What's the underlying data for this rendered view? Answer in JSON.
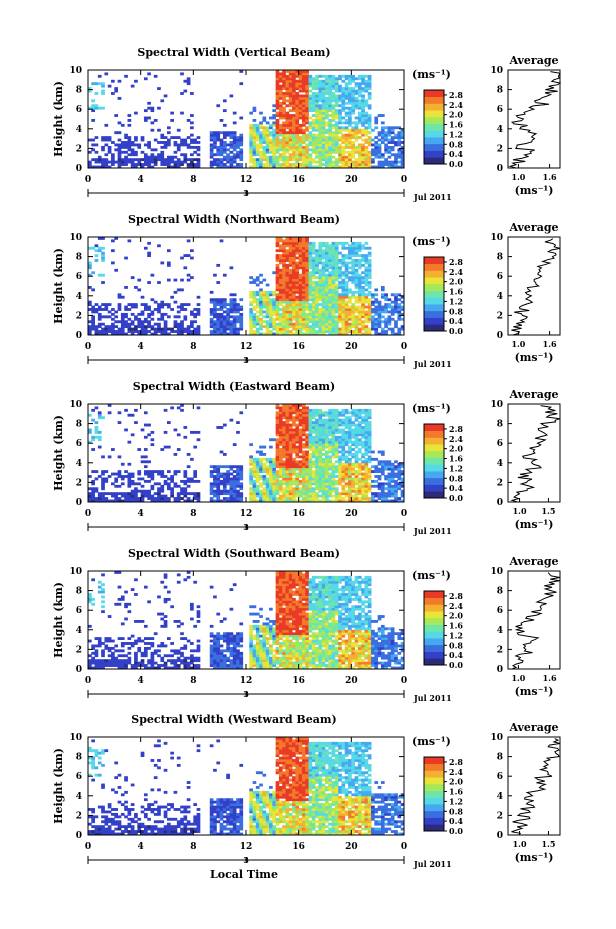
{
  "figure": {
    "x_axis_title": "Local Time",
    "date_label": "Jul 2011",
    "day_label": "3",
    "time_ticks": [
      "0",
      "4",
      "8",
      "12",
      "16",
      "20",
      "0"
    ],
    "height_ticks": [
      "0",
      "2",
      "4",
      "6",
      "8",
      "10"
    ],
    "y_axis_title": "Height (km)",
    "colorbar_unit": "(ms⁻¹)",
    "colorbar_ticks": [
      "0.0",
      "0.4",
      "0.8",
      "1.2",
      "1.6",
      "2.0",
      "2.4",
      "2.8"
    ],
    "average_title": "Average",
    "average_unit": "(ms⁻¹)",
    "colormap": [
      "#2b2b7a",
      "#3340c8",
      "#3a6fe0",
      "#46a8f0",
      "#56d8e6",
      "#6ee6a8",
      "#a6e85a",
      "#e8e43a",
      "#f4b030",
      "#f27a2a",
      "#e83a26"
    ]
  },
  "chart_data": [
    {
      "type": "heatmap",
      "title": "Spectral Width (Vertical Beam)",
      "xlabel": "Local Time",
      "ylabel": "Height (km)",
      "xlim_hours": [
        0,
        24
      ],
      "ylim_km": [
        0,
        10
      ],
      "clim": [
        0,
        3.0
      ],
      "profile": {
        "title": "Average",
        "xlabel": "(ms⁻¹)",
        "xticks": [
          "1.0",
          "1.6"
        ],
        "xlim": [
          0.8,
          1.8
        ],
        "height_km": [
          0.2,
          0.7,
          1.2,
          1.7,
          2.2,
          2.7,
          3.2,
          3.7,
          4.2,
          4.7,
          5.2,
          5.7,
          6.2,
          6.7,
          7.2,
          7.7,
          8.2,
          8.7,
          9.2,
          9.7
        ],
        "value": [
          0.95,
          1.0,
          1.1,
          1.2,
          1.05,
          1.15,
          1.25,
          1.3,
          1.15,
          1.0,
          1.05,
          1.2,
          1.35,
          1.45,
          1.5,
          1.65,
          1.6,
          1.7,
          1.65,
          1.7
        ]
      }
    },
    {
      "type": "heatmap",
      "title": "Spectral Width (Northward Beam)",
      "xlabel": "Local Time",
      "ylabel": "Height (km)",
      "xlim_hours": [
        0,
        24
      ],
      "ylim_km": [
        0,
        10
      ],
      "clim": [
        0,
        3.0
      ],
      "profile": {
        "title": "Average",
        "xlabel": "(ms⁻¹)",
        "xticks": [
          "1.0",
          "1.6"
        ],
        "xlim": [
          0.8,
          1.8
        ],
        "height_km": [
          0.2,
          0.7,
          1.2,
          1.7,
          2.2,
          2.7,
          3.2,
          3.7,
          4.2,
          4.7,
          5.2,
          5.7,
          6.2,
          6.7,
          7.2,
          7.7,
          8.2,
          8.7,
          9.2,
          9.7
        ],
        "value": [
          0.9,
          0.95,
          1.05,
          1.1,
          1.0,
          1.1,
          1.15,
          1.2,
          1.25,
          1.3,
          1.25,
          1.35,
          1.4,
          1.45,
          1.5,
          1.55,
          1.6,
          1.7,
          1.6,
          1.65
        ]
      }
    },
    {
      "type": "heatmap",
      "title": "Spectral Width (Eastward Beam)",
      "xlabel": "Local Time",
      "ylabel": "Height (km)",
      "xlim_hours": [
        0,
        24
      ],
      "ylim_km": [
        0,
        10
      ],
      "clim": [
        0,
        3.0
      ],
      "profile": {
        "title": "Average",
        "xlabel": "(ms⁻¹)",
        "xticks": [
          "1.0",
          "1.5"
        ],
        "xlim": [
          0.8,
          1.7
        ],
        "height_km": [
          0.2,
          0.7,
          1.2,
          1.7,
          2.2,
          2.7,
          3.2,
          3.7,
          4.2,
          4.7,
          5.2,
          5.7,
          6.2,
          6.7,
          7.2,
          7.7,
          8.2,
          8.7,
          9.2,
          9.7
        ],
        "value": [
          0.85,
          0.95,
          1.05,
          1.15,
          1.2,
          1.1,
          1.2,
          1.3,
          1.25,
          1.15,
          1.2,
          1.3,
          1.35,
          1.4,
          1.45,
          1.45,
          1.5,
          1.6,
          1.55,
          1.5
        ]
      }
    },
    {
      "type": "heatmap",
      "title": "Spectral Width (Southward Beam)",
      "xlabel": "Local Time",
      "ylabel": "Height (km)",
      "xlim_hours": [
        0,
        24
      ],
      "ylim_km": [
        0,
        10
      ],
      "clim": [
        0,
        3.0
      ],
      "profile": {
        "title": "Average",
        "xlabel": "(ms⁻¹)",
        "xticks": [
          "1.0",
          "1.6"
        ],
        "xlim": [
          0.8,
          1.8
        ],
        "height_km": [
          0.2,
          0.7,
          1.2,
          1.7,
          2.2,
          2.7,
          3.2,
          3.7,
          4.2,
          4.7,
          5.2,
          5.7,
          6.2,
          6.7,
          7.2,
          7.7,
          8.2,
          8.7,
          9.2,
          9.7
        ],
        "value": [
          0.9,
          1.0,
          1.05,
          1.15,
          1.05,
          1.2,
          1.25,
          1.1,
          1.05,
          1.15,
          1.2,
          1.3,
          1.35,
          1.4,
          1.5,
          1.6,
          1.65,
          1.6,
          1.7,
          1.55
        ]
      }
    },
    {
      "type": "heatmap",
      "title": "Spectral Width (Westward Beam)",
      "xlabel": "Local Time",
      "ylabel": "Height (km)",
      "xlim_hours": [
        0,
        24
      ],
      "ylim_km": [
        0,
        10
      ],
      "clim": [
        0,
        3.0
      ],
      "profile": {
        "title": "Average",
        "xlabel": "(ms⁻¹)",
        "xticks": [
          "1.0",
          "1.5"
        ],
        "xlim": [
          0.8,
          1.7
        ],
        "height_km": [
          0.2,
          0.7,
          1.2,
          1.7,
          2.2,
          2.7,
          3.2,
          3.7,
          4.2,
          4.7,
          5.2,
          5.7,
          6.2,
          6.7,
          7.2,
          7.7,
          8.2,
          8.7,
          9.2,
          9.7
        ],
        "value": [
          0.9,
          0.95,
          1.0,
          1.05,
          1.1,
          1.15,
          1.2,
          1.15,
          1.25,
          1.3,
          1.35,
          1.4,
          1.45,
          1.5,
          1.5,
          1.55,
          1.6,
          1.65,
          1.6,
          1.55
        ]
      }
    }
  ]
}
